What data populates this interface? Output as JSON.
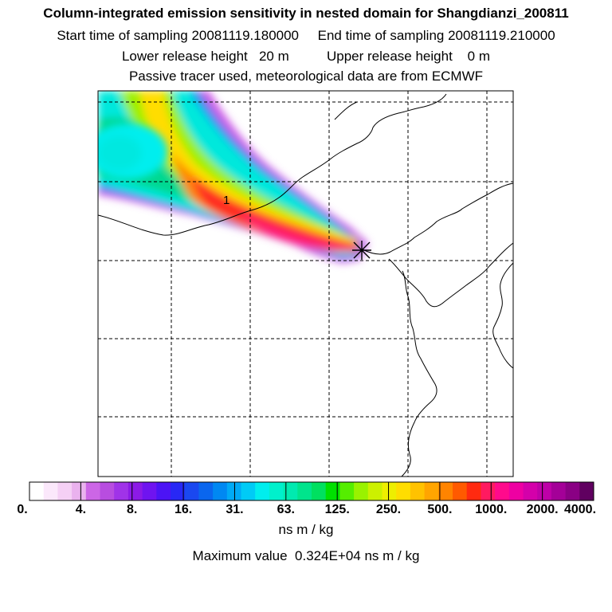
{
  "header": {
    "title": "Column-integrated emission sensitivity in nested domain for Shangdianzi_200811",
    "sampling_line": "Start time of sampling 20081119.180000     End time of sampling 20081119.210000",
    "release_line": "Lower release height   20 m          Upper release height    0 m",
    "tracer_line": "Passive tracer used, meteorological data are from ECMWF"
  },
  "map": {
    "receptor_marker": "receptor-star-icon",
    "plume_label": "1",
    "background": "#ffffff",
    "coastline_color": "#000000",
    "gridline_style": "dashed"
  },
  "legend": {
    "units": "ns m / kg",
    "max_value_text": "Maximum value  0.324E+04 ns m / kg",
    "tick_labels": [
      "0.",
      "4.",
      "8.",
      "16.",
      "31.",
      "63.",
      "125.",
      "250.",
      "500.",
      "1000.",
      "2000.",
      "4000."
    ],
    "colors": [
      "#ffffff",
      "#fbe8fb",
      "#f5d0f5",
      "#eab2ee",
      "#cc66e6",
      "#b84de0",
      "#a033e8",
      "#8c1ae6",
      "#6f14f0",
      "#4c14f5",
      "#2828f5",
      "#1a48f0",
      "#0a66ee",
      "#0088f2",
      "#00aaf6",
      "#00cbf6",
      "#00eeee",
      "#00f0cc",
      "#00eab0",
      "#00e48c",
      "#00e060",
      "#00e000",
      "#55ee00",
      "#99f200",
      "#ccf000",
      "#eeee00",
      "#ffdd00",
      "#ffc200",
      "#ffa500",
      "#ff8400",
      "#ff5a00",
      "#ff2a10",
      "#ff1a60",
      "#ff0a8c",
      "#ee00a2",
      "#d400aa",
      "#be00a8",
      "#a40098",
      "#8a0084",
      "#600060"
    ]
  }
}
